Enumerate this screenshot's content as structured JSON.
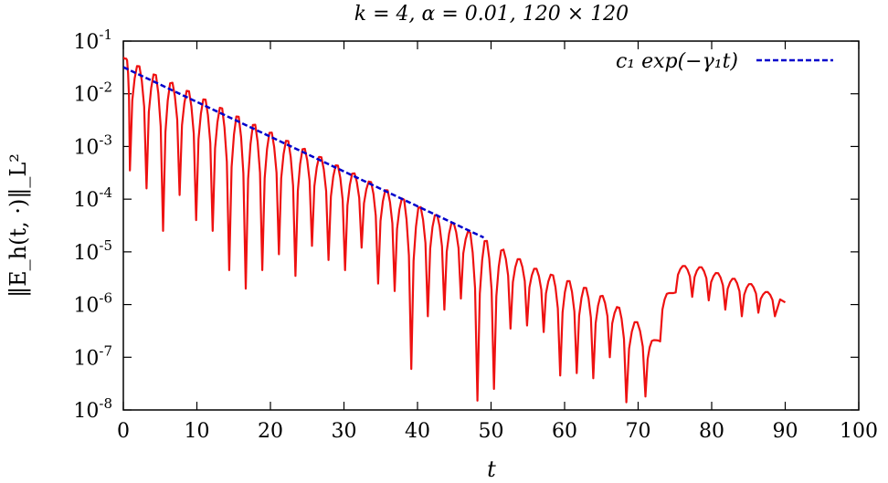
{
  "chart_data": {
    "type": "line",
    "title": "k = 4, α = 0.01, 120 × 120",
    "xlabel": "t",
    "ylabel": "‖E_h(t, ·)‖_L²",
    "xlim": [
      0,
      100
    ],
    "ylim_log10": [
      -8,
      -1
    ],
    "yscale": "log",
    "x_ticks": [
      "0",
      "10",
      "20",
      "30",
      "40",
      "50",
      "60",
      "70",
      "80",
      "90",
      "100"
    ],
    "y_tick_exponents": [
      "-8",
      "-7",
      "-6",
      "-5",
      "-4",
      "-3",
      "-2",
      "-1"
    ],
    "grid": false,
    "legend_position": "top-right",
    "legend_label": "c₁ exp(−γ₁t)",
    "series": [
      {
        "label": "c1 exp(-gamma1 t)",
        "color": "#0000cc",
        "style": "dashed",
        "x": [
          0,
          49
        ],
        "y": [
          0.032,
          1.87e-05
        ]
      },
      {
        "label": "",
        "color": "#ee1111",
        "style": "solid",
        "oscillation_period": 2.25,
        "envelope": {
          "t": [
            0,
            49,
            56,
            62,
            66,
            70,
            71.5,
            72.5,
            74,
            76,
            78,
            82,
            86,
            90
          ],
          "y": [
            0.05,
            1.87e-05,
            5e-06,
            2.5e-06,
            1.3e-06,
            4.5e-07,
            1.5e-07,
            3e-07,
            1.6e-06,
            5.5e-06,
            5.5e-06,
            3.5e-06,
            2.3e-06,
            1.1e-06
          ]
        },
        "minima": {
          "t": [
            0.9,
            3.15,
            5.4,
            7.65,
            9.9,
            12.15,
            14.4,
            16.65,
            18.9,
            21.15,
            23.4,
            25.65,
            27.9,
            30.15,
            32.4,
            34.65,
            36.9,
            39.15,
            41.4,
            43.65,
            45.9,
            48.15,
            50.4,
            52.65,
            54.9,
            57.15,
            59.4,
            61.65,
            63.9,
            66.15,
            68.4,
            71,
            73,
            75.1,
            77.35,
            79.6,
            81.85,
            84.1,
            86.35,
            88.6
          ],
          "y": [
            0.00035,
            0.00016,
            2.5e-05,
            0.00012,
            4e-05,
            2.5e-05,
            4.5e-06,
            2e-06,
            4.5e-06,
            9e-06,
            3.5e-06,
            1.3e-05,
            7e-06,
            4.5e-06,
            1.2e-05,
            2.5e-06,
            1.8e-06,
            6e-08,
            6e-07,
            8e-07,
            1.3e-06,
            1.5e-08,
            2.5e-08,
            3.5e-07,
            4e-07,
            3e-07,
            4.5e-08,
            5e-08,
            4e-08,
            1e-07,
            1.4e-08,
            1.8e-08,
            2e-07,
            1.7e-06,
            1.4e-06,
            1.2e-06,
            8e-07,
            6e-07,
            7e-07,
            6e-07
          ]
        }
      }
    ]
  }
}
